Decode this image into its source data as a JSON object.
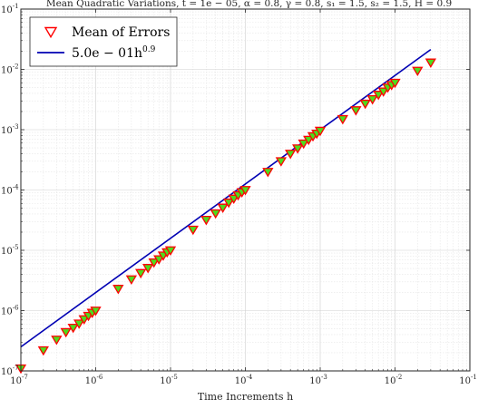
{
  "chart_data": {
    "type": "scatter",
    "title": "Mean Quadratic Variations, t = 1e − 05, α = 0.8, γ = 0.8, s₁ = 1.5, s₂ = 1.5, H = 0.9",
    "xlabel": "Time Increments h",
    "ylabel": "",
    "x_scale": "log",
    "y_scale": "log",
    "xlim": [
      1e-07,
      0.1
    ],
    "ylim": [
      1e-07,
      0.1
    ],
    "grid": true,
    "legend_position": "top-left",
    "x_ticks": [
      {
        "base": "10",
        "exp": "-7"
      },
      {
        "base": "10",
        "exp": "-6"
      },
      {
        "base": "10",
        "exp": "-5"
      },
      {
        "base": "10",
        "exp": "-4"
      },
      {
        "base": "10",
        "exp": "-3"
      },
      {
        "base": "10",
        "exp": "-2"
      },
      {
        "base": "10",
        "exp": "-1"
      }
    ],
    "y_ticks": [
      {
        "base": "10",
        "exp": "-7"
      },
      {
        "base": "10",
        "exp": "-6"
      },
      {
        "base": "10",
        "exp": "-5"
      },
      {
        "base": "10",
        "exp": "-4"
      },
      {
        "base": "10",
        "exp": "-3"
      },
      {
        "base": "10",
        "exp": "-2"
      },
      {
        "base": "10",
        "exp": "-1"
      }
    ],
    "series": [
      {
        "name": "Mean of Errors",
        "kind": "markers",
        "marker": "triangle-down",
        "edge_color": "#ff0000",
        "face_color": "#4ddc1c",
        "x": [
          1e-07,
          2e-07,
          3e-07,
          4e-07,
          5e-07,
          6e-07,
          7e-07,
          8e-07,
          9e-07,
          1e-06,
          2e-06,
          3e-06,
          4e-06,
          5e-06,
          6e-06,
          7e-06,
          8e-06,
          9e-06,
          1e-05,
          2e-05,
          3e-05,
          4e-05,
          5e-05,
          6e-05,
          7e-05,
          8e-05,
          9e-05,
          0.0001,
          0.0002,
          0.0003,
          0.0004,
          0.0005,
          0.0006,
          0.0007,
          0.0008,
          0.0009,
          0.001,
          0.002,
          0.003,
          0.004,
          0.005,
          0.006,
          0.007,
          0.008,
          0.009,
          0.01,
          0.02,
          0.03
        ],
        "y": [
          1.1e-07,
          2.2e-07,
          3.3e-07,
          4.4e-07,
          5.2e-07,
          6.1e-07,
          7.2e-07,
          8.2e-07,
          9.2e-07,
          1e-06,
          2.3e-06,
          3.3e-06,
          4.2e-06,
          5.1e-06,
          6.3e-06,
          7.1e-06,
          8.2e-06,
          9.3e-06,
          1e-05,
          2.2e-05,
          3.2e-05,
          4.1e-05,
          5.1e-05,
          6.2e-05,
          7.2e-05,
          8.2e-05,
          9.2e-05,
          0.0001,
          0.0002,
          0.0003,
          0.0004,
          0.00049,
          0.00059,
          0.00068,
          0.00078,
          0.00086,
          0.00096,
          0.0015,
          0.0021,
          0.0027,
          0.0032,
          0.0038,
          0.0043,
          0.005,
          0.0055,
          0.006,
          0.0095,
          0.013
        ]
      },
      {
        "name": "5.0e − 01h^0.9",
        "kind": "line",
        "color": "#0000b3",
        "coefficient": 0.5,
        "exponent": 0.9,
        "x_range": [
          1e-07,
          0.03
        ]
      }
    ],
    "legend": [
      {
        "label": "Mean of Errors",
        "base": "Mean of Errors",
        "sup": ""
      },
      {
        "label": "5.0e − 01h^0.9",
        "base": "5.0e − 01h",
        "sup": "0.9"
      }
    ]
  }
}
